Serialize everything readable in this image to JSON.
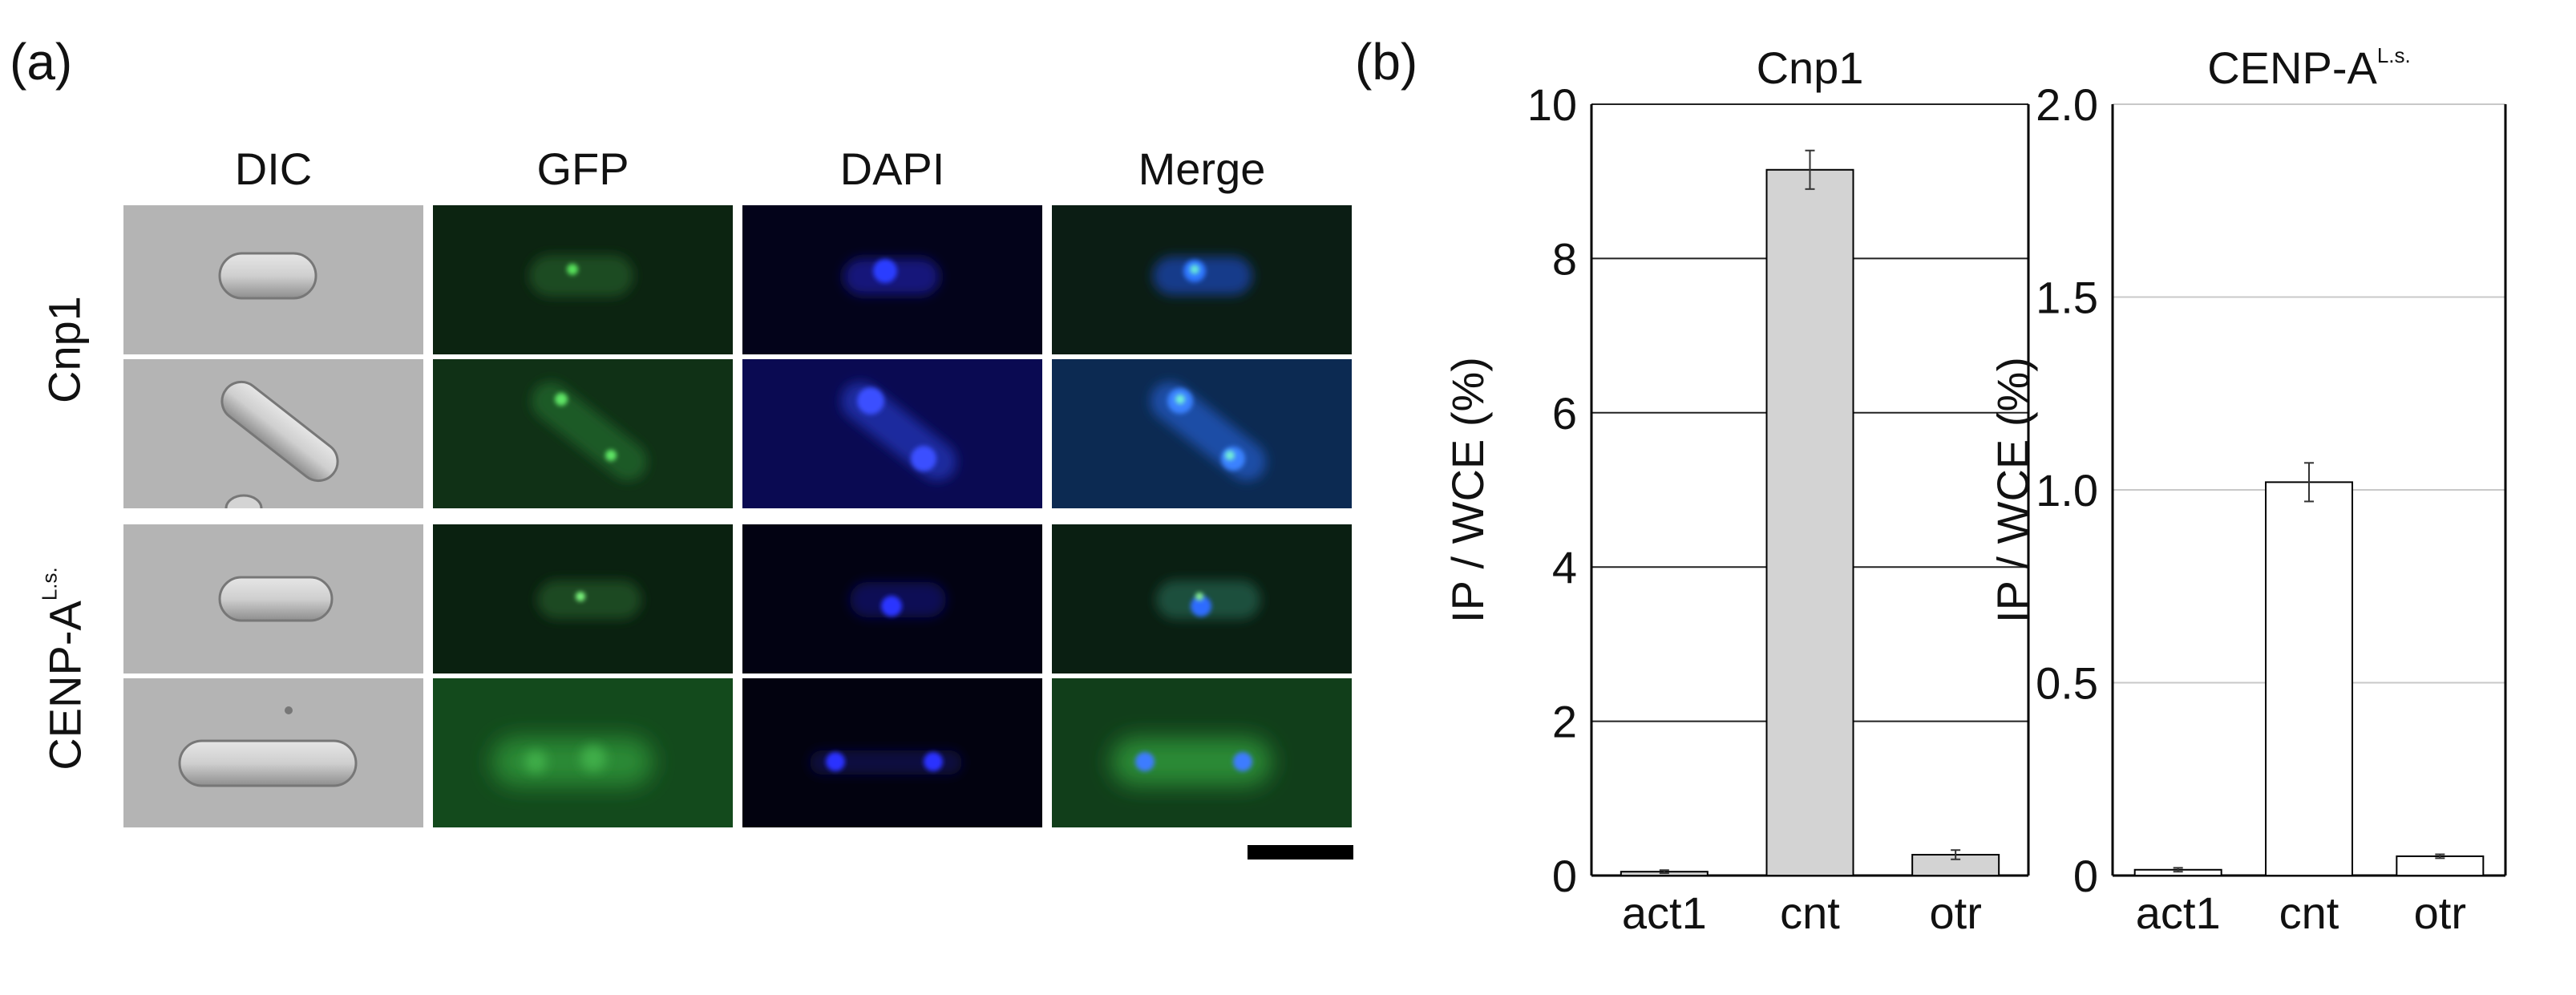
{
  "panel_a": {
    "letter": "(a)",
    "columns": [
      "DIC",
      "GFP",
      "DAPI",
      "Merge"
    ],
    "rows": [
      {
        "label": "Cnp1",
        "label_sup": ""
      },
      {
        "label": "CENP-A",
        "label_sup": "L.s."
      }
    ]
  },
  "panel_b": {
    "letter": "(b)"
  },
  "chart_data": [
    {
      "type": "bar",
      "title": "Cnp1",
      "title_sup": "",
      "ylabel": "IP / WCE (%)",
      "xlabel": "",
      "categories": [
        "act1",
        "cnt",
        "otr"
      ],
      "values": [
        0.05,
        9.15,
        0.27
      ],
      "errors": [
        0.02,
        0.25,
        0.06
      ],
      "ylim": [
        0,
        10
      ],
      "yticks": [
        0,
        2,
        4,
        6,
        8,
        10
      ],
      "ytick_labels": [
        "0",
        "2",
        "4",
        "6",
        "8",
        "10"
      ],
      "bar_color": "#d3d3d3",
      "grid": true
    },
    {
      "type": "bar",
      "title": "CENP-A",
      "title_sup": "L.s.",
      "ylabel": "IP / WCE (%)",
      "xlabel": "",
      "categories": [
        "act1",
        "cnt",
        "otr"
      ],
      "values": [
        0.015,
        1.02,
        0.05
      ],
      "errors": [
        0.005,
        0.05,
        0.005
      ],
      "ylim": [
        0,
        2
      ],
      "yticks": [
        0,
        0.5,
        1.0,
        1.5,
        2.0
      ],
      "ytick_labels": [
        "0",
        "0.5",
        "1.0",
        "1.5",
        "2.0"
      ],
      "bar_color": "#ffffff",
      "grid": true
    }
  ]
}
